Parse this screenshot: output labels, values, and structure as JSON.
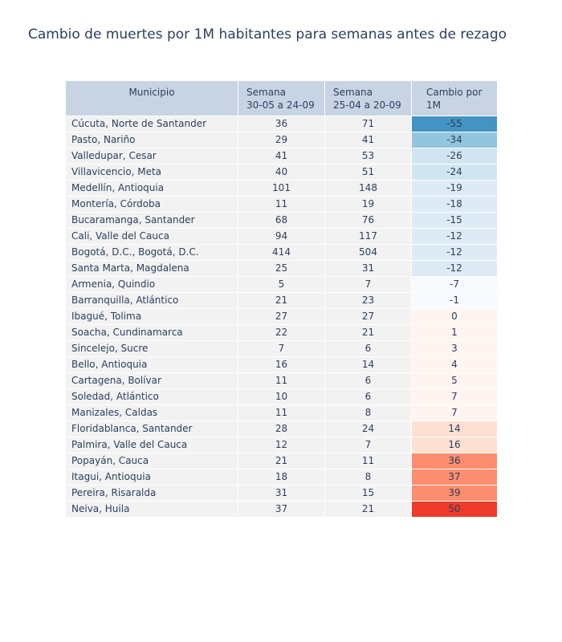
{
  "chart_data": {
    "type": "table",
    "title": "Cambio de muertes por 1M habitantes para semanas antes de rezago",
    "columns": [
      [
        "Municipio"
      ],
      [
        "Semana",
        "30-05 a 24-09"
      ],
      [
        "Semana",
        "25-04 a 20-09"
      ],
      [
        "Cambio por",
        "1M"
      ]
    ],
    "rows": [
      [
        "Cúcuta, Norte de Santander",
        36,
        71,
        -55
      ],
      [
        "Pasto, Nariño",
        29,
        41,
        -34
      ],
      [
        "Valledupar, Cesar",
        41,
        53,
        -26
      ],
      [
        "Villavicencio, Meta",
        40,
        51,
        -24
      ],
      [
        "Medellín, Antioquia",
        101,
        148,
        -19
      ],
      [
        "Montería, Córdoba",
        11,
        19,
        -18
      ],
      [
        "Bucaramanga, Santander",
        68,
        76,
        -15
      ],
      [
        "Cali, Valle del Cauca",
        94,
        117,
        -12
      ],
      [
        "Bogotá, D.C., Bogotá, D.C.",
        414,
        504,
        -12
      ],
      [
        "Santa Marta, Magdalena",
        25,
        31,
        -12
      ],
      [
        "Armenia, Quindio",
        5,
        7,
        -7
      ],
      [
        "Barranquilla, Atlántico",
        21,
        23,
        -1
      ],
      [
        "Ibagué, Tolima",
        27,
        27,
        0
      ],
      [
        "Soacha, Cundinamarca",
        22,
        21,
        1
      ],
      [
        "Sincelejo, Sucre",
        7,
        6,
        3
      ],
      [
        "Bello, Antioquia",
        16,
        14,
        4
      ],
      [
        "Cartagena, Bolívar",
        11,
        6,
        5
      ],
      [
        "Soledad, Atlántico",
        10,
        6,
        7
      ],
      [
        "Manizales, Caldas",
        11,
        8,
        7
      ],
      [
        "Floridablanca, Santander",
        28,
        24,
        14
      ],
      [
        "Palmira, Valle del Cauca",
        12,
        7,
        16
      ],
      [
        "Popayán, Cauca",
        21,
        11,
        36
      ],
      [
        "Itagui, Antioquia",
        18,
        8,
        37
      ],
      [
        "Pereira, Risaralda",
        31,
        15,
        39
      ],
      [
        "Neiva, Huila",
        37,
        21,
        50
      ]
    ],
    "cambio_colors": [
      "#4393c3",
      "#92c5de",
      "#d1e5f0",
      "#d1e5f0",
      "#deebf7",
      "#deebf7",
      "#deebf7",
      "#deebf7",
      "#deebf7",
      "#deebf7",
      "#f7fbff",
      "#f7fbff",
      "#fff5f0",
      "#fff5f0",
      "#fff5f0",
      "#fff5f0",
      "#fff5f0",
      "#fff5f0",
      "#fff5f0",
      "#fee0d2",
      "#fee0d2",
      "#fc8d6e",
      "#fc8d6e",
      "#fc8d6e",
      "#ef3b2c"
    ]
  }
}
